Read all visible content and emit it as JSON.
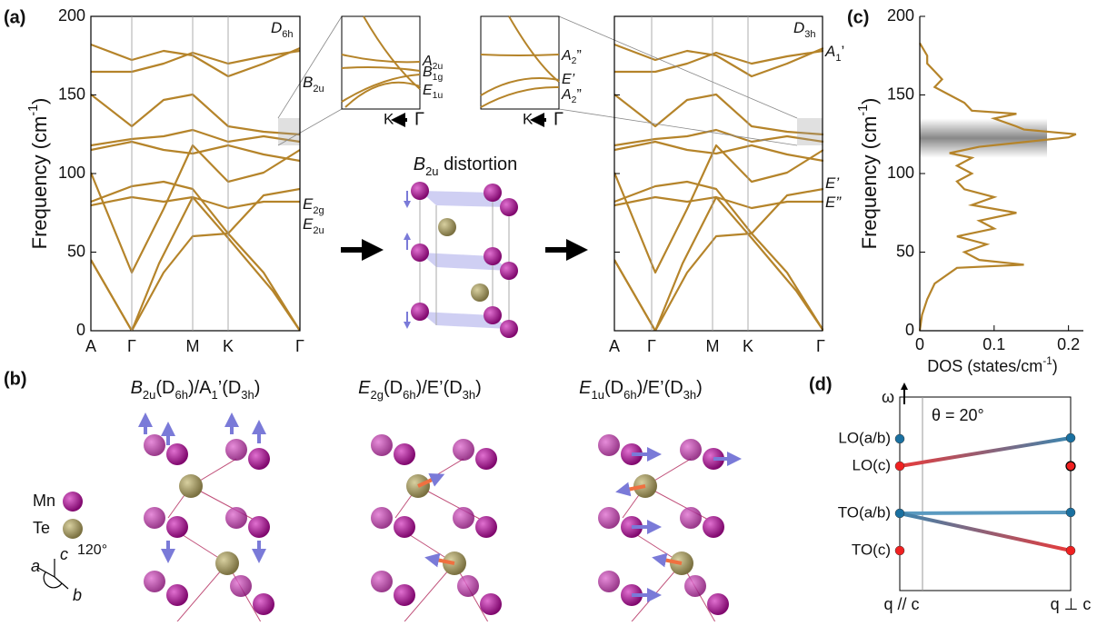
{
  "figure": {
    "panel_labels": [
      "(a)",
      "(b)",
      "(c)",
      "(d)"
    ],
    "distortion_title": [
      "B",
      "2u",
      " distortion"
    ]
  },
  "chart_data": [
    {
      "type": "band",
      "symmetry": [
        "D",
        "6h"
      ],
      "ylabel": [
        "Frequency (cm",
        "-1",
        ")"
      ],
      "ylim": [
        0,
        200
      ],
      "yticks": [
        0,
        50,
        100,
        150,
        200
      ],
      "kpoints": [
        "A",
        "Γ",
        "M",
        "K",
        "Γ"
      ],
      "mode_labels": [
        [
          "B",
          "2u"
        ],
        [
          "E",
          "2g"
        ],
        [
          "E",
          "2u"
        ]
      ],
      "color": "#b5842a"
    },
    {
      "type": "band",
      "symmetry": [
        "D",
        "3h"
      ],
      "ylim": [
        0,
        200
      ],
      "kpoints": [
        "A",
        "Γ",
        "M",
        "K",
        "Γ"
      ],
      "mode_labels": [
        [
          "A",
          "1",
          "’"
        ],
        [
          "E’"
        ],
        [
          "E”"
        ]
      ],
      "color": "#b5842a"
    },
    {
      "type": "line",
      "xlabel": [
        "DOS (states/cm",
        "-1",
        ")"
      ],
      "ylabel": [
        "Frequency (cm",
        "-1",
        ")"
      ],
      "xlim": [
        0,
        0.22
      ],
      "xticks": [
        0,
        0.1,
        0.2
      ],
      "ylim": [
        0,
        200
      ],
      "yticks": [
        0,
        50,
        100,
        150,
        200
      ],
      "series": [
        {
          "color": "#b5842a",
          "x": [
            0,
            0.003,
            0.01,
            0.02,
            0.05,
            0.14,
            0.08,
            0.06,
            0.09,
            0.05,
            0.1,
            0.08,
            0.13,
            0.07,
            0.1,
            0.06,
            0.05,
            0.07,
            0.05,
            0.07,
            0.04,
            0.08,
            0.14,
            0.2,
            0.21,
            0.14,
            0.13,
            0.1,
            0.13,
            0.07,
            0.06,
            0.04,
            0.02,
            0.03,
            0.02,
            0.01,
            0.01,
            0
          ],
          "values": [
            0,
            10,
            20,
            30,
            40,
            42,
            45,
            50,
            55,
            60,
            65,
            70,
            75,
            80,
            85,
            90,
            95,
            100,
            105,
            110,
            113,
            117,
            120,
            123,
            125,
            128,
            130,
            135,
            138,
            140,
            145,
            150,
            155,
            160,
            165,
            170,
            175,
            183
          ]
        }
      ]
    }
  ],
  "insets": [
    {
      "labels": [
        [
          "A",
          "2u"
        ],
        [
          "B",
          "1g"
        ],
        [
          "E",
          "1u"
        ]
      ],
      "path": [
        "K",
        "Γ"
      ]
    },
    {
      "labels": [
        [
          "A",
          "2",
          "”"
        ],
        [
          "E’"
        ],
        [
          "A",
          "2",
          "”"
        ]
      ],
      "path": [
        "K",
        "Γ"
      ]
    }
  ],
  "panel_b": {
    "modes": [
      [
        "B",
        "2u",
        "(D",
        "6h",
        ")/A",
        "1",
        "’(D",
        "3h",
        ")"
      ],
      [
        "E",
        "2g",
        "(D",
        "6h",
        ")/E’(D",
        "3h",
        ")"
      ],
      [
        "E",
        "1u",
        "(D",
        "6h",
        ")/E’(D",
        "3h",
        ")"
      ]
    ],
    "legend": [
      "Mn",
      "Te"
    ],
    "axes": [
      "c",
      "a",
      "b",
      "120°"
    ]
  },
  "panel_d": {
    "omega": "ω",
    "theta": "θ = 20°",
    "levels": [
      "LO(a/b)",
      "LO(c)",
      "TO(a/b)",
      "TO(c)"
    ],
    "q": [
      "q // c",
      "q ⊥ c"
    ]
  }
}
